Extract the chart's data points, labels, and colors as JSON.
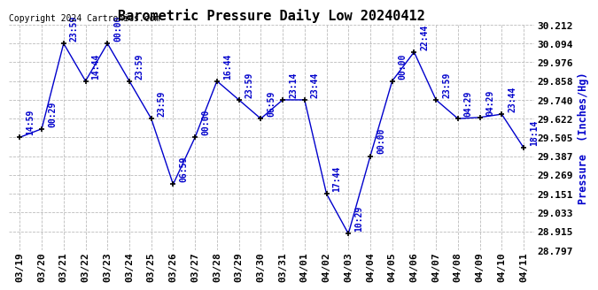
{
  "title": "Barometric Pressure Daily Low 20240412",
  "ylabel": "Pressure  (Inches/Hg)",
  "copyright": "Copyright 2024 Cartronics.com",
  "line_color": "#0000cc",
  "marker_color": "#000000",
  "background_color": "#ffffff",
  "grid_color": "#bbbbbb",
  "ylim": [
    28.797,
    30.212
  ],
  "yticks": [
    28.797,
    28.915,
    29.033,
    29.151,
    29.269,
    29.387,
    29.505,
    29.622,
    29.74,
    29.858,
    29.976,
    30.094,
    30.212
  ],
  "dates": [
    "03/19",
    "03/20",
    "03/21",
    "03/22",
    "03/23",
    "03/24",
    "03/25",
    "03/26",
    "03/27",
    "03/28",
    "03/29",
    "03/30",
    "03/31",
    "04/01",
    "04/02",
    "04/03",
    "04/04",
    "04/05",
    "04/06",
    "04/07",
    "04/08",
    "04/09",
    "04/10",
    "04/11"
  ],
  "values": [
    29.505,
    29.558,
    30.094,
    29.858,
    30.094,
    29.858,
    29.622,
    29.21,
    29.505,
    29.858,
    29.74,
    29.622,
    29.74,
    29.74,
    29.151,
    28.9,
    29.387,
    29.858,
    30.04,
    29.74,
    29.622,
    29.63,
    29.65,
    29.44
  ],
  "annotations": [
    "14:59",
    "00:29",
    "23:59",
    "14:44",
    "00:00",
    "23:59",
    "23:59",
    "06:59",
    "00:00",
    "16:44",
    "23:59",
    "06:59",
    "23:14",
    "23:44",
    "17:44",
    "10:29",
    "00:00",
    "00:00",
    "22:44",
    "23:59",
    "04:29",
    "04:29",
    "23:44",
    "18:14"
  ],
  "annotation_color": "#0000cc",
  "annotation_fontsize": 7,
  "title_fontsize": 11,
  "tick_fontsize": 8,
  "copyright_fontsize": 7
}
